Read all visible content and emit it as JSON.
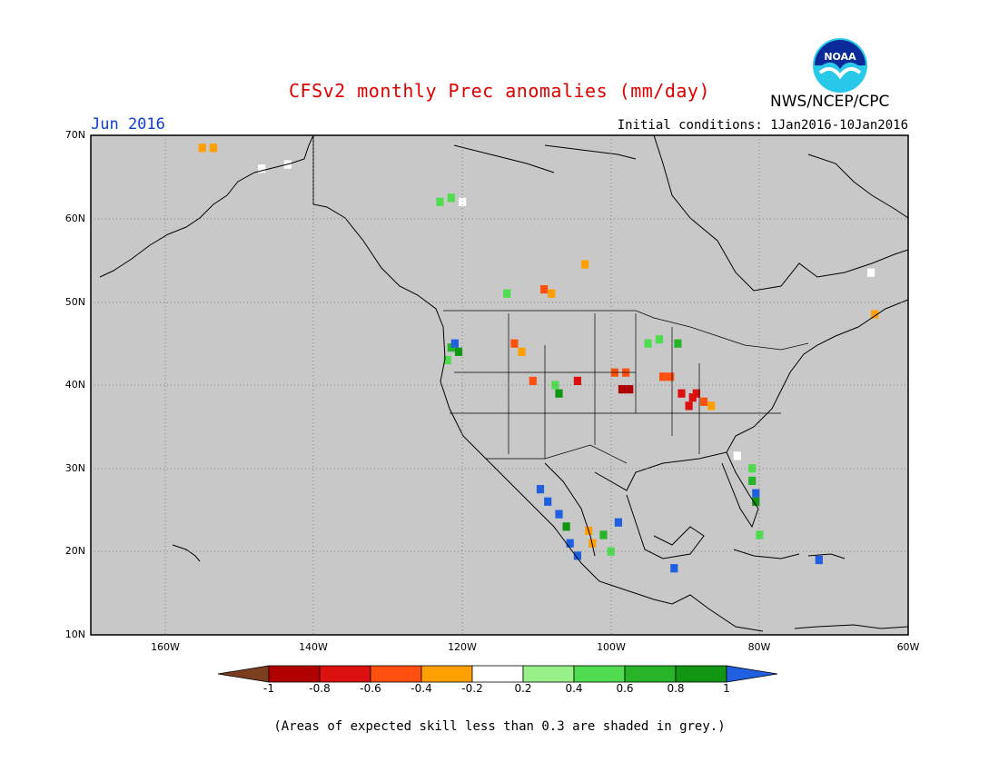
{
  "header": {
    "title": "CFSv2 monthly Prec anomalies (mm/day)",
    "agency": "NWS/NCEP/CPC",
    "logo_text": "NOAA",
    "month": "Jun 2016",
    "initial_conditions": "Initial conditions: 1Jan2016-10Jan2016"
  },
  "map": {
    "lat_labels": [
      "70N",
      "60N",
      "50N",
      "40N",
      "30N",
      "20N",
      "10N"
    ],
    "lon_labels": [
      "160W",
      "140W",
      "120W",
      "100W",
      "80W",
      "60W"
    ],
    "background_color": "#c8c8c8",
    "anomaly_cells": [
      {
        "lon": -155.0,
        "lat": 68.5,
        "value": -0.3
      },
      {
        "lon": -153.5,
        "lat": 68.5,
        "value": -0.3
      },
      {
        "lon": -147.0,
        "lat": 66.0,
        "value": 0.0
      },
      {
        "lon": -143.5,
        "lat": 66.5,
        "value": 0.0
      },
      {
        "lon": -123.0,
        "lat": 62.0,
        "value": 0.5
      },
      {
        "lon": -121.5,
        "lat": 62.5,
        "value": 0.5
      },
      {
        "lon": -120.0,
        "lat": 62.0,
        "value": 0.0
      },
      {
        "lon": -108.0,
        "lat": 51.0,
        "value": -0.3
      },
      {
        "lon": -109.0,
        "lat": 51.5,
        "value": -0.5
      },
      {
        "lon": -103.5,
        "lat": 54.5,
        "value": -0.3
      },
      {
        "lon": -114.0,
        "lat": 51.0,
        "value": 0.5
      },
      {
        "lon": -121.5,
        "lat": 44.5,
        "value": 0.7
      },
      {
        "lon": -120.5,
        "lat": 44.0,
        "value": 0.9
      },
      {
        "lon": -122.0,
        "lat": 43.0,
        "value": 0.5
      },
      {
        "lon": -121.0,
        "lat": 45.0,
        "value": 1.0
      },
      {
        "lon": -113.0,
        "lat": 45.0,
        "value": -0.5
      },
      {
        "lon": -112.0,
        "lat": 44.0,
        "value": -0.3
      },
      {
        "lon": -110.5,
        "lat": 40.5,
        "value": -0.6
      },
      {
        "lon": -104.5,
        "lat": 40.5,
        "value": -0.8
      },
      {
        "lon": -107.5,
        "lat": 40.0,
        "value": 0.5
      },
      {
        "lon": -107.0,
        "lat": 39.0,
        "value": 0.8
      },
      {
        "lon": -99.5,
        "lat": 41.5,
        "value": -0.6
      },
      {
        "lon": -98.0,
        "lat": 41.5,
        "value": -0.6
      },
      {
        "lon": -98.5,
        "lat": 39.5,
        "value": -0.9
      },
      {
        "lon": -97.5,
        "lat": 39.5,
        "value": -0.9
      },
      {
        "lon": -93.0,
        "lat": 41.0,
        "value": -0.6
      },
      {
        "lon": -92.0,
        "lat": 41.0,
        "value": -0.6
      },
      {
        "lon": -90.5,
        "lat": 39.0,
        "value": -0.8
      },
      {
        "lon": -89.0,
        "lat": 38.5,
        "value": -0.8
      },
      {
        "lon": -89.5,
        "lat": 37.5,
        "value": -0.8
      },
      {
        "lon": -88.5,
        "lat": 39.0,
        "value": -0.8
      },
      {
        "lon": -87.5,
        "lat": 38.0,
        "value": -0.6
      },
      {
        "lon": -86.5,
        "lat": 37.5,
        "value": -0.3
      },
      {
        "lon": -95.0,
        "lat": 45.0,
        "value": 0.5
      },
      {
        "lon": -93.5,
        "lat": 45.5,
        "value": 0.5
      },
      {
        "lon": -91.0,
        "lat": 45.0,
        "value": 0.7
      },
      {
        "lon": -81.0,
        "lat": 30.0,
        "value": 0.5
      },
      {
        "lon": -81.0,
        "lat": 28.5,
        "value": 0.7
      },
      {
        "lon": -80.5,
        "lat": 27.0,
        "value": 1.0
      },
      {
        "lon": -80.5,
        "lat": 26.0,
        "value": 0.8
      },
      {
        "lon": -83.0,
        "lat": 31.5,
        "value": 0.0
      },
      {
        "lon": -109.5,
        "lat": 27.5,
        "value": 1.0
      },
      {
        "lon": -108.5,
        "lat": 26.0,
        "value": 1.0
      },
      {
        "lon": -107.0,
        "lat": 24.5,
        "value": 1.0
      },
      {
        "lon": -106.0,
        "lat": 23.0,
        "value": 0.8
      },
      {
        "lon": -105.5,
        "lat": 21.0,
        "value": 1.0
      },
      {
        "lon": -104.5,
        "lat": 19.5,
        "value": 1.0
      },
      {
        "lon": -103.0,
        "lat": 22.5,
        "value": -0.3
      },
      {
        "lon": -102.5,
        "lat": 21.0,
        "value": -0.3
      },
      {
        "lon": -101.0,
        "lat": 22.0,
        "value": 0.7
      },
      {
        "lon": -100.0,
        "lat": 20.0,
        "value": 0.5
      },
      {
        "lon": -99.0,
        "lat": 23.5,
        "value": 1.0
      },
      {
        "lon": -91.5,
        "lat": 18.0,
        "value": 1.0
      },
      {
        "lon": -72.0,
        "lat": 19.0,
        "value": 1.0
      },
      {
        "lon": -80.0,
        "lat": 22.0,
        "value": 0.5
      },
      {
        "lon": -64.5,
        "lat": 48.5,
        "value": -0.3
      },
      {
        "lon": -65.0,
        "lat": 53.5,
        "value": 0.0
      }
    ]
  },
  "colorbar": {
    "labels": [
      "-1",
      "-0.8",
      "-0.6",
      "-0.4",
      "-0.2",
      "0.2",
      "0.4",
      "0.6",
      "0.8",
      "1"
    ],
    "colors": [
      "#7b3f1f",
      "#b00000",
      "#dd1010",
      "#ff5010",
      "#ffa000",
      "#ffffff",
      "#98f088",
      "#50dc50",
      "#28b428",
      "#109610",
      "#2060e0"
    ]
  },
  "footnote": "(Areas of expected skill less than 0.3 are shaded in grey.)"
}
